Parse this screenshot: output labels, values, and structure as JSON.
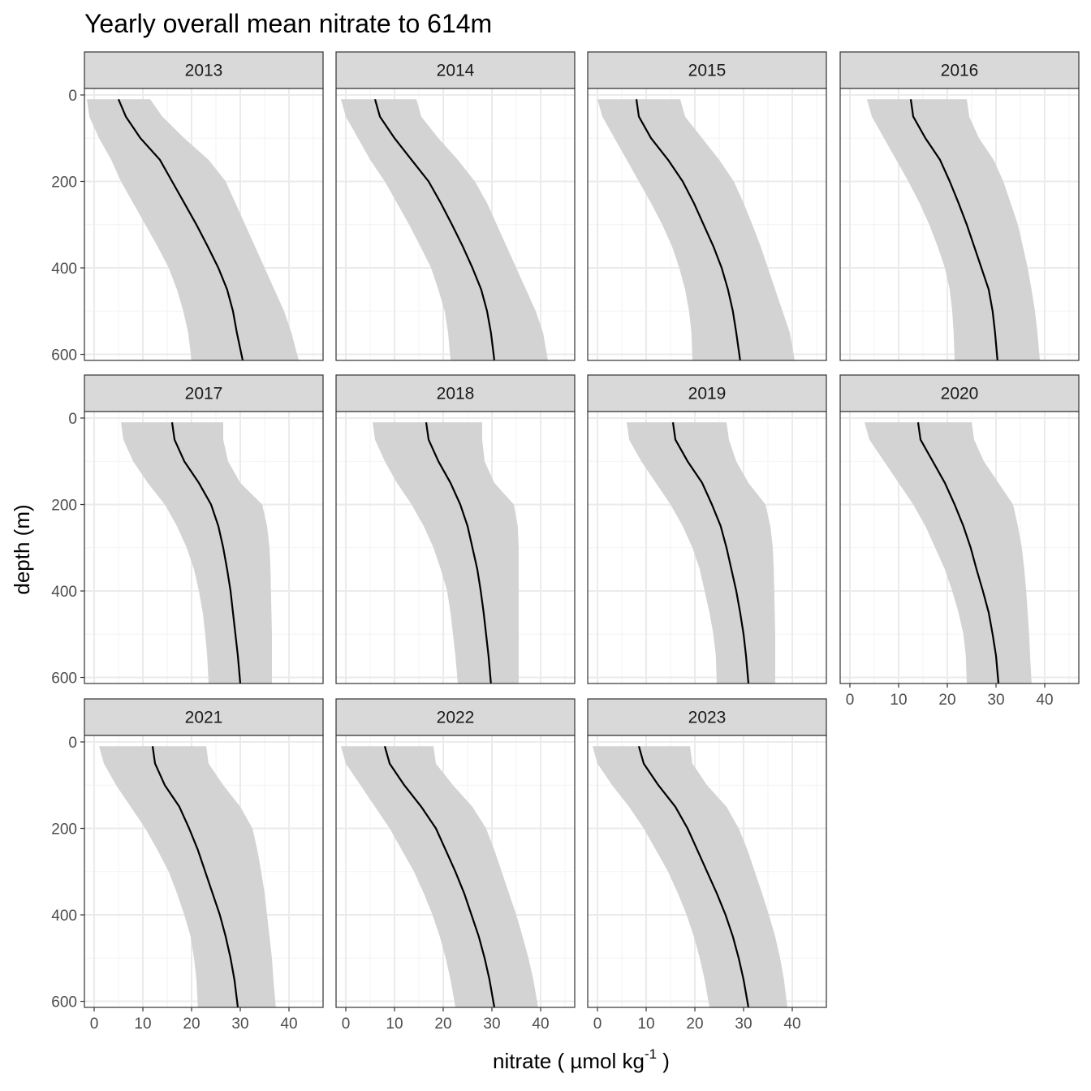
{
  "chart_data": {
    "type": "line",
    "title": "Yearly overall mean nitrate to 614m",
    "xlabel": "nitrate ( µmol kg",
    "xlabel_superscript": "-1",
    "xlabel_suffix": " )",
    "ylabel": "depth (m)",
    "xlim": [
      -2,
      47
    ],
    "ylim": [
      614,
      -15
    ],
    "y_reversed": true,
    "x_ticks": [
      0,
      10,
      20,
      30,
      40
    ],
    "y_ticks": [
      0,
      200,
      400,
      600
    ],
    "grid": true,
    "legend": "none",
    "colors": {
      "line": "#000000",
      "ribbon": "#d3d3d3",
      "strip": "#d9d9d9",
      "grid": "#ebebeb"
    },
    "depth": [
      10,
      50,
      100,
      150,
      200,
      250,
      300,
      350,
      400,
      450,
      500,
      550,
      614
    ],
    "panels": [
      {
        "year": "2013",
        "mean": [
          5,
          6.5,
          9.5,
          13.5,
          16,
          18.5,
          21,
          23.3,
          25.5,
          27.3,
          28.5,
          29.3,
          30.5
        ],
        "lower": [
          -1.5,
          -1,
          1,
          3.5,
          5.5,
          8,
          10.5,
          13,
          15.3,
          17,
          18.3,
          19.3,
          20
        ],
        "upper": [
          11.5,
          14,
          18.5,
          23.5,
          27,
          29,
          31,
          33,
          35,
          37,
          39,
          40.5,
          42
        ]
      },
      {
        "year": "2014",
        "mean": [
          6,
          7,
          10,
          13.5,
          17,
          19.5,
          21.8,
          24,
          26,
          27.8,
          29,
          29.8,
          30.5
        ],
        "lower": [
          -1,
          0,
          2.5,
          5,
          8,
          10.5,
          13,
          15.3,
          17.5,
          19,
          20.3,
          21,
          21.5
        ],
        "upper": [
          14.5,
          15.5,
          19,
          23,
          26.5,
          29,
          31,
          33,
          35,
          37,
          39,
          40.5,
          41.5
        ]
      },
      {
        "year": "2015",
        "mean": [
          8,
          8.5,
          11,
          14.5,
          17.5,
          19.8,
          21.8,
          23.8,
          25.5,
          26.8,
          27.8,
          28.5,
          29.3
        ],
        "lower": [
          0,
          1,
          3.5,
          6,
          8.5,
          11,
          13.3,
          15.3,
          16.8,
          18,
          18.8,
          19.3,
          19.5
        ],
        "upper": [
          17,
          18,
          21.5,
          25,
          28,
          30,
          31.8,
          33.5,
          35,
          36.5,
          38,
          39.5,
          40.5
        ]
      },
      {
        "year": "2016",
        "mean": [
          12.5,
          13,
          15.5,
          18.5,
          20.5,
          22.3,
          24,
          25.5,
          27,
          28.5,
          29.3,
          29.8,
          30.3
        ],
        "lower": [
          3.5,
          4.5,
          7,
          9.5,
          12,
          14.3,
          16.3,
          18,
          19.5,
          20.5,
          21,
          21.3,
          21.5
        ],
        "upper": [
          24,
          24.5,
          26.5,
          29.5,
          31.5,
          33,
          34.5,
          35.5,
          36.5,
          37.3,
          38,
          38.5,
          39
        ]
      },
      {
        "year": "2017",
        "mean": [
          16,
          16.5,
          18.5,
          21.5,
          24,
          25.5,
          26.5,
          27.3,
          28,
          28.5,
          29,
          29.5,
          30
        ],
        "lower": [
          5.5,
          6,
          8,
          11,
          14.5,
          17,
          19,
          20.5,
          21.5,
          22.3,
          22.8,
          23.2,
          23.5
        ],
        "upper": [
          26.5,
          26.5,
          27.5,
          30,
          34.5,
          35.5,
          36,
          36.2,
          36.3,
          36.4,
          36.5,
          36.5,
          36.5
        ]
      },
      {
        "year": "2018",
        "mean": [
          16.5,
          17,
          19,
          21.5,
          23.5,
          25,
          26,
          27,
          27.7,
          28.3,
          28.8,
          29.3,
          29.8
        ],
        "lower": [
          5.5,
          6,
          8,
          10.5,
          13.5,
          16,
          18,
          19.5,
          20.8,
          21.5,
          22,
          22.5,
          23
        ],
        "upper": [
          28,
          28,
          28.5,
          30.5,
          34.5,
          35.3,
          35.5,
          35.5,
          35.5,
          35.5,
          35.5,
          35.5,
          35.5
        ]
      },
      {
        "year": "2019",
        "mean": [
          15.5,
          16,
          18.5,
          21.5,
          23.5,
          25.3,
          26.5,
          27.5,
          28.5,
          29.3,
          30,
          30.5,
          31
        ],
        "lower": [
          6,
          6.5,
          9,
          12,
          15,
          17.5,
          19.5,
          21,
          22,
          23,
          23.8,
          24.3,
          24.5
        ],
        "upper": [
          26.5,
          27,
          28.5,
          31,
          34.5,
          35.5,
          36,
          36.2,
          36.3,
          36.4,
          36.5,
          36.5,
          36.5
        ]
      },
      {
        "year": "2020",
        "mean": [
          14,
          14.5,
          17,
          19.5,
          21.5,
          23.3,
          24.8,
          26,
          27.3,
          28.5,
          29.3,
          30,
          30.5
        ],
        "lower": [
          3,
          4,
          7,
          10,
          13,
          15.5,
          17.5,
          19.5,
          21,
          22.3,
          23.3,
          23.8,
          24
        ],
        "upper": [
          25,
          25.5,
          27.5,
          30.5,
          33.5,
          34.5,
          35.3,
          35.8,
          36.2,
          36.5,
          36.8,
          37,
          37.3
        ]
      },
      {
        "year": "2021",
        "mean": [
          12,
          12.5,
          14.5,
          17.5,
          19.5,
          21.3,
          22.8,
          24.3,
          25.8,
          27,
          28,
          28.8,
          29.5
        ],
        "lower": [
          1,
          2,
          4.5,
          7.5,
          10.5,
          13,
          15.3,
          17,
          18.5,
          19.8,
          20.5,
          21,
          21.3
        ],
        "upper": [
          23,
          23.5,
          26.5,
          30,
          32.5,
          33.5,
          34.3,
          35,
          35.5,
          36,
          36.5,
          36.8,
          37.3
        ]
      },
      {
        "year": "2022",
        "mean": [
          8,
          9,
          12,
          15.5,
          18.5,
          20.5,
          22.5,
          24.3,
          25.8,
          27.3,
          28.5,
          29.5,
          30.5
        ],
        "lower": [
          -1,
          0,
          3,
          6,
          9,
          11.5,
          14,
          16,
          17.8,
          19.3,
          20.5,
          21.5,
          22.5
        ],
        "upper": [
          18,
          18.5,
          22,
          26,
          28.8,
          30.5,
          32,
          33.5,
          35,
          36.3,
          37.5,
          38.5,
          39.5
        ]
      },
      {
        "year": "2023",
        "mean": [
          8.5,
          9.5,
          12.5,
          16,
          18.5,
          20.5,
          22.5,
          24.5,
          26.3,
          27.8,
          29,
          30,
          31
        ],
        "lower": [
          -1,
          0,
          3,
          6.5,
          9.5,
          12,
          14.5,
          16.5,
          18.3,
          19.8,
          21,
          22,
          23
        ],
        "upper": [
          19,
          19.5,
          22.5,
          26.5,
          29,
          30.8,
          32.3,
          33.8,
          35.2,
          36.5,
          37.5,
          38.3,
          39
        ]
      }
    ]
  }
}
